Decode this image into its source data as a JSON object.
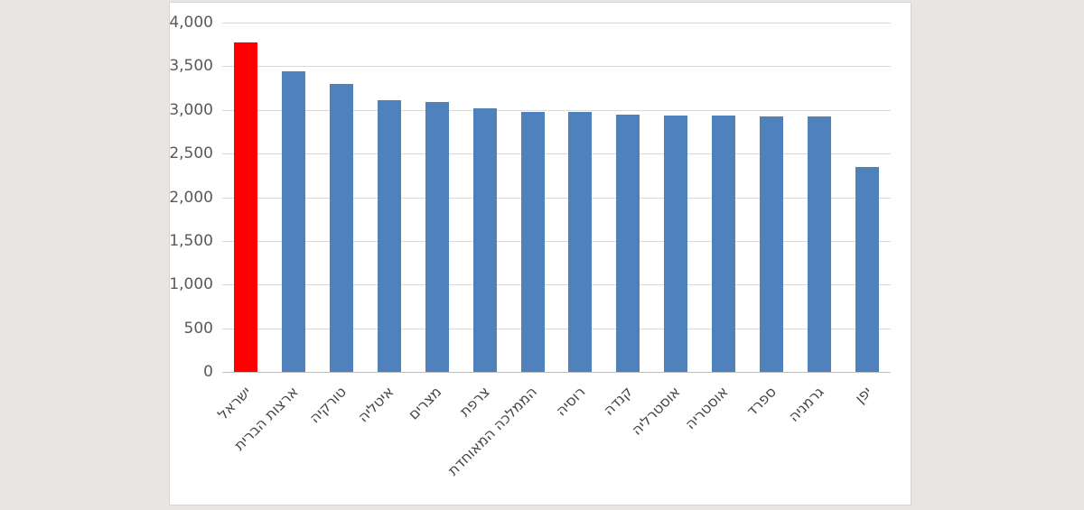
{
  "chart_data": {
    "type": "bar",
    "title": "",
    "xlabel": "",
    "ylabel": "",
    "categories": [
      "ישראל",
      "ארצות הברית",
      "טורקיה",
      "איטליה",
      "מצרים",
      "צרפת",
      "הממלכה המאוחדת",
      "רוסיה",
      "קנדה",
      "אוסטרליה",
      "אוסטריה",
      "ספרד",
      "גרמניה",
      "יפן"
    ],
    "values": [
      3770,
      3445,
      3300,
      3110,
      3095,
      3020,
      2975,
      2975,
      2945,
      2935,
      2935,
      2930,
      2925,
      2350
    ],
    "highlight_index": 0,
    "highlight_color": "#ff0000",
    "bar_color": "#4f81bd",
    "ylim": [
      0,
      4000
    ],
    "yticks": [
      0,
      500,
      1000,
      1500,
      2000,
      2500,
      3000,
      3500,
      4000
    ],
    "ytick_labels": [
      "0",
      "500",
      "1,000",
      "1,500",
      "2,000",
      "2,500",
      "3,000",
      "3,500",
      "4,000"
    ],
    "grid": true,
    "legend": "none",
    "x_label_rotation_deg": 45,
    "text_direction": "rtl"
  },
  "colors": {
    "page_background": "#e9e5e2",
    "panel_background": "#ffffff",
    "gridline": "#d9d9d9",
    "tick_text": "#595959",
    "category_text": "#454545"
  }
}
